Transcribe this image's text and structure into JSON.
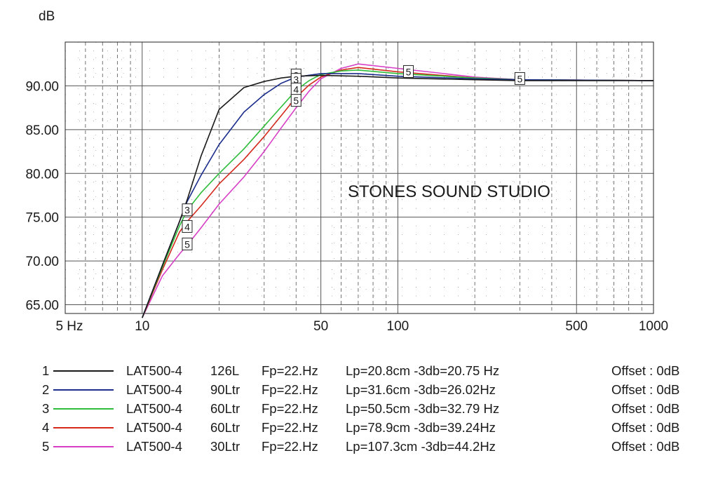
{
  "chart_data": {
    "type": "line",
    "ylabel": "dB",
    "xscale": "log",
    "xlim": [
      5,
      1000
    ],
    "ylim": [
      64,
      95
    ],
    "x_ticks": [
      {
        "value": 5,
        "label": "5 Hz"
      },
      {
        "value": 10,
        "label": "10"
      },
      {
        "value": 50,
        "label": "50"
      },
      {
        "value": 100,
        "label": "100"
      },
      {
        "value": 500,
        "label": "500"
      },
      {
        "value": 1000,
        "label": "1000"
      }
    ],
    "y_ticks": [
      {
        "value": 65,
        "label": "65.00"
      },
      {
        "value": 70,
        "label": "70.00"
      },
      {
        "value": 75,
        "label": "75.00"
      },
      {
        "value": 80,
        "label": "80.00"
      },
      {
        "value": 85,
        "label": "85.00"
      },
      {
        "value": 90,
        "label": "90.00"
      }
    ],
    "grid": true,
    "annotation": "STONES SOUND STUDIO",
    "series": [
      {
        "id": "1",
        "color": "#1a1a1a",
        "x": [
          10,
          12,
          14,
          15,
          17,
          20,
          25,
          30,
          35,
          40,
          50,
          70,
          100,
          200,
          300,
          1000
        ],
        "y": [
          63.5,
          69.5,
          74.5,
          77.0,
          82.0,
          87.3,
          89.8,
          90.5,
          90.9,
          91.1,
          91.2,
          91.1,
          90.9,
          90.7,
          90.6,
          90.6
        ],
        "markers": []
      },
      {
        "id": "2",
        "color": "#1c2e8c",
        "x": [
          10,
          12,
          14,
          15,
          17,
          20,
          25,
          30,
          35,
          40,
          50,
          70,
          100,
          200,
          300,
          1000
        ],
        "y": [
          63.5,
          69.5,
          74.5,
          76.8,
          79.8,
          83.3,
          87.0,
          89.0,
          90.3,
          91.0,
          91.4,
          91.4,
          91.1,
          90.8,
          90.7,
          90.6
        ],
        "markers": [
          {
            "x": 40,
            "y": 91.2
          }
        ]
      },
      {
        "id": "3",
        "color": "#2ebd3a",
        "x": [
          10,
          12,
          14,
          15,
          17,
          20,
          25,
          30,
          35,
          40,
          45,
          50,
          60,
          70,
          100,
          200,
          300,
          1000
        ],
        "y": [
          63.5,
          69.3,
          74.0,
          75.8,
          77.8,
          80.0,
          82.8,
          85.4,
          87.6,
          89.5,
          90.6,
          91.3,
          91.7,
          91.8,
          91.4,
          90.9,
          90.7,
          90.6
        ],
        "markers": [
          {
            "x": 15,
            "y": 75.8
          },
          {
            "x": 40,
            "y": 90.7
          }
        ]
      },
      {
        "id": "4",
        "color": "#d42a1e",
        "x": [
          10,
          12,
          14,
          15,
          17,
          20,
          25,
          30,
          35,
          40,
          45,
          50,
          60,
          70,
          100,
          200,
          300,
          1000
        ],
        "y": [
          63.5,
          69.0,
          73.3,
          74.5,
          76.3,
          78.8,
          81.6,
          84.2,
          86.6,
          88.7,
          90.1,
          91.0,
          91.8,
          92.1,
          91.6,
          90.9,
          90.7,
          90.6
        ],
        "markers": [
          {
            "x": 15,
            "y": 73.9
          },
          {
            "x": 40,
            "y": 89.6
          }
        ]
      },
      {
        "id": "5",
        "color": "#d63fc5",
        "x": [
          10,
          12,
          14,
          15,
          17,
          20,
          25,
          30,
          35,
          40,
          45,
          50,
          60,
          70,
          100,
          200,
          300,
          1000
        ],
        "y": [
          63.5,
          68.3,
          70.8,
          71.8,
          73.8,
          76.5,
          79.6,
          82.5,
          85.2,
          87.5,
          89.4,
          90.8,
          92.0,
          92.5,
          92.0,
          91.0,
          90.7,
          90.6
        ],
        "markers": [
          {
            "x": 15,
            "y": 71.9
          },
          {
            "x": 40,
            "y": 88.3
          },
          {
            "x": 110,
            "y": 91.6
          },
          {
            "x": 300,
            "y": 90.8
          }
        ]
      }
    ],
    "legend": [
      {
        "num": "1",
        "name": "LAT500-4",
        "box": "126L",
        "fp": "Fp=22.Hz",
        "info": "Lp=20.8cm -3db=20.75 Hz",
        "offset": "Offset : 0dB",
        "color": "#1a1a1a"
      },
      {
        "num": "2",
        "name": "LAT500-4",
        "box": "90Ltr",
        "fp": "Fp=22.Hz",
        "info": "Lp=31.6cm -3db=26.02Hz",
        "offset": "Offset : 0dB",
        "color": "#1c2e8c"
      },
      {
        "num": "3",
        "name": "LAT500-4",
        "box": "60Ltr",
        "fp": "Fp=22.Hz",
        "info": "Lp=50.5cm -3db=32.79 Hz",
        "offset": "Offset : 0dB",
        "color": "#2ebd3a"
      },
      {
        "num": "4",
        "name": "LAT500-4",
        "box": "60Ltr",
        "fp": "Fp=22.Hz",
        "info": "Lp=78.9cm -3db=39.24Hz",
        "offset": "Offset : 0dB",
        "color": "#d42a1e"
      },
      {
        "num": "5",
        "name": "LAT500-4",
        "box": "30Ltr",
        "fp": "Fp=22.Hz",
        "info": "Lp=107.3cm -3db=44.2Hz",
        "offset": "Offset : 0dB",
        "color": "#d63fc5"
      }
    ]
  }
}
